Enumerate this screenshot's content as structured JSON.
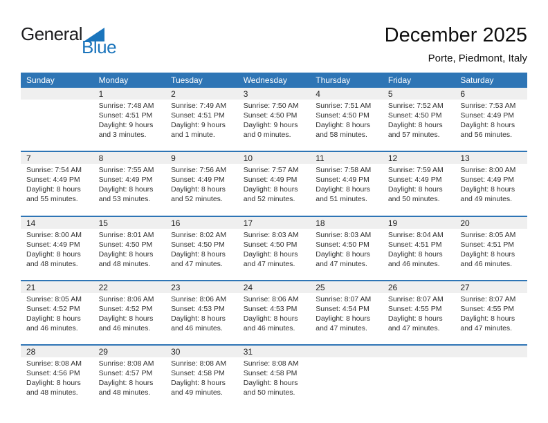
{
  "logo": {
    "text_black": "General",
    "text_blue": "Blue",
    "triangle_icon": "blue-right-triangle"
  },
  "header": {
    "title": "December 2025",
    "subtitle": "Porte, Piedmont, Italy"
  },
  "colors": {
    "accent": "#2e75b5",
    "day_band": "#efefef",
    "logo_blue": "#1b75bc",
    "header_text": "#ffffff"
  },
  "calendar": {
    "weekday_headers": [
      "Sunday",
      "Monday",
      "Tuesday",
      "Wednesday",
      "Thursday",
      "Friday",
      "Saturday"
    ],
    "weeks": [
      [
        null,
        {
          "day": "1",
          "sunrise": "Sunrise: 7:48 AM",
          "sunset": "Sunset: 4:51 PM",
          "daylight": "Daylight: 9 hours and 3 minutes."
        },
        {
          "day": "2",
          "sunrise": "Sunrise: 7:49 AM",
          "sunset": "Sunset: 4:51 PM",
          "daylight": "Daylight: 9 hours and 1 minute."
        },
        {
          "day": "3",
          "sunrise": "Sunrise: 7:50 AM",
          "sunset": "Sunset: 4:50 PM",
          "daylight": "Daylight: 9 hours and 0 minutes."
        },
        {
          "day": "4",
          "sunrise": "Sunrise: 7:51 AM",
          "sunset": "Sunset: 4:50 PM",
          "daylight": "Daylight: 8 hours and 58 minutes."
        },
        {
          "day": "5",
          "sunrise": "Sunrise: 7:52 AM",
          "sunset": "Sunset: 4:50 PM",
          "daylight": "Daylight: 8 hours and 57 minutes."
        },
        {
          "day": "6",
          "sunrise": "Sunrise: 7:53 AM",
          "sunset": "Sunset: 4:49 PM",
          "daylight": "Daylight: 8 hours and 56 minutes."
        }
      ],
      [
        {
          "day": "7",
          "sunrise": "Sunrise: 7:54 AM",
          "sunset": "Sunset: 4:49 PM",
          "daylight": "Daylight: 8 hours and 55 minutes."
        },
        {
          "day": "8",
          "sunrise": "Sunrise: 7:55 AM",
          "sunset": "Sunset: 4:49 PM",
          "daylight": "Daylight: 8 hours and 53 minutes."
        },
        {
          "day": "9",
          "sunrise": "Sunrise: 7:56 AM",
          "sunset": "Sunset: 4:49 PM",
          "daylight": "Daylight: 8 hours and 52 minutes."
        },
        {
          "day": "10",
          "sunrise": "Sunrise: 7:57 AM",
          "sunset": "Sunset: 4:49 PM",
          "daylight": "Daylight: 8 hours and 52 minutes."
        },
        {
          "day": "11",
          "sunrise": "Sunrise: 7:58 AM",
          "sunset": "Sunset: 4:49 PM",
          "daylight": "Daylight: 8 hours and 51 minutes."
        },
        {
          "day": "12",
          "sunrise": "Sunrise: 7:59 AM",
          "sunset": "Sunset: 4:49 PM",
          "daylight": "Daylight: 8 hours and 50 minutes."
        },
        {
          "day": "13",
          "sunrise": "Sunrise: 8:00 AM",
          "sunset": "Sunset: 4:49 PM",
          "daylight": "Daylight: 8 hours and 49 minutes."
        }
      ],
      [
        {
          "day": "14",
          "sunrise": "Sunrise: 8:00 AM",
          "sunset": "Sunset: 4:49 PM",
          "daylight": "Daylight: 8 hours and 48 minutes."
        },
        {
          "day": "15",
          "sunrise": "Sunrise: 8:01 AM",
          "sunset": "Sunset: 4:50 PM",
          "daylight": "Daylight: 8 hours and 48 minutes."
        },
        {
          "day": "16",
          "sunrise": "Sunrise: 8:02 AM",
          "sunset": "Sunset: 4:50 PM",
          "daylight": "Daylight: 8 hours and 47 minutes."
        },
        {
          "day": "17",
          "sunrise": "Sunrise: 8:03 AM",
          "sunset": "Sunset: 4:50 PM",
          "daylight": "Daylight: 8 hours and 47 minutes."
        },
        {
          "day": "18",
          "sunrise": "Sunrise: 8:03 AM",
          "sunset": "Sunset: 4:50 PM",
          "daylight": "Daylight: 8 hours and 47 minutes."
        },
        {
          "day": "19",
          "sunrise": "Sunrise: 8:04 AM",
          "sunset": "Sunset: 4:51 PM",
          "daylight": "Daylight: 8 hours and 46 minutes."
        },
        {
          "day": "20",
          "sunrise": "Sunrise: 8:05 AM",
          "sunset": "Sunset: 4:51 PM",
          "daylight": "Daylight: 8 hours and 46 minutes."
        }
      ],
      [
        {
          "day": "21",
          "sunrise": "Sunrise: 8:05 AM",
          "sunset": "Sunset: 4:52 PM",
          "daylight": "Daylight: 8 hours and 46 minutes."
        },
        {
          "day": "22",
          "sunrise": "Sunrise: 8:06 AM",
          "sunset": "Sunset: 4:52 PM",
          "daylight": "Daylight: 8 hours and 46 minutes."
        },
        {
          "day": "23",
          "sunrise": "Sunrise: 8:06 AM",
          "sunset": "Sunset: 4:53 PM",
          "daylight": "Daylight: 8 hours and 46 minutes."
        },
        {
          "day": "24",
          "sunrise": "Sunrise: 8:06 AM",
          "sunset": "Sunset: 4:53 PM",
          "daylight": "Daylight: 8 hours and 46 minutes."
        },
        {
          "day": "25",
          "sunrise": "Sunrise: 8:07 AM",
          "sunset": "Sunset: 4:54 PM",
          "daylight": "Daylight: 8 hours and 47 minutes."
        },
        {
          "day": "26",
          "sunrise": "Sunrise: 8:07 AM",
          "sunset": "Sunset: 4:55 PM",
          "daylight": "Daylight: 8 hours and 47 minutes."
        },
        {
          "day": "27",
          "sunrise": "Sunrise: 8:07 AM",
          "sunset": "Sunset: 4:55 PM",
          "daylight": "Daylight: 8 hours and 47 minutes."
        }
      ],
      [
        {
          "day": "28",
          "sunrise": "Sunrise: 8:08 AM",
          "sunset": "Sunset: 4:56 PM",
          "daylight": "Daylight: 8 hours and 48 minutes."
        },
        {
          "day": "29",
          "sunrise": "Sunrise: 8:08 AM",
          "sunset": "Sunset: 4:57 PM",
          "daylight": "Daylight: 8 hours and 48 minutes."
        },
        {
          "day": "30",
          "sunrise": "Sunrise: 8:08 AM",
          "sunset": "Sunset: 4:58 PM",
          "daylight": "Daylight: 8 hours and 49 minutes."
        },
        {
          "day": "31",
          "sunrise": "Sunrise: 8:08 AM",
          "sunset": "Sunset: 4:58 PM",
          "daylight": "Daylight: 8 hours and 50 minutes."
        },
        null,
        null,
        null
      ]
    ]
  }
}
